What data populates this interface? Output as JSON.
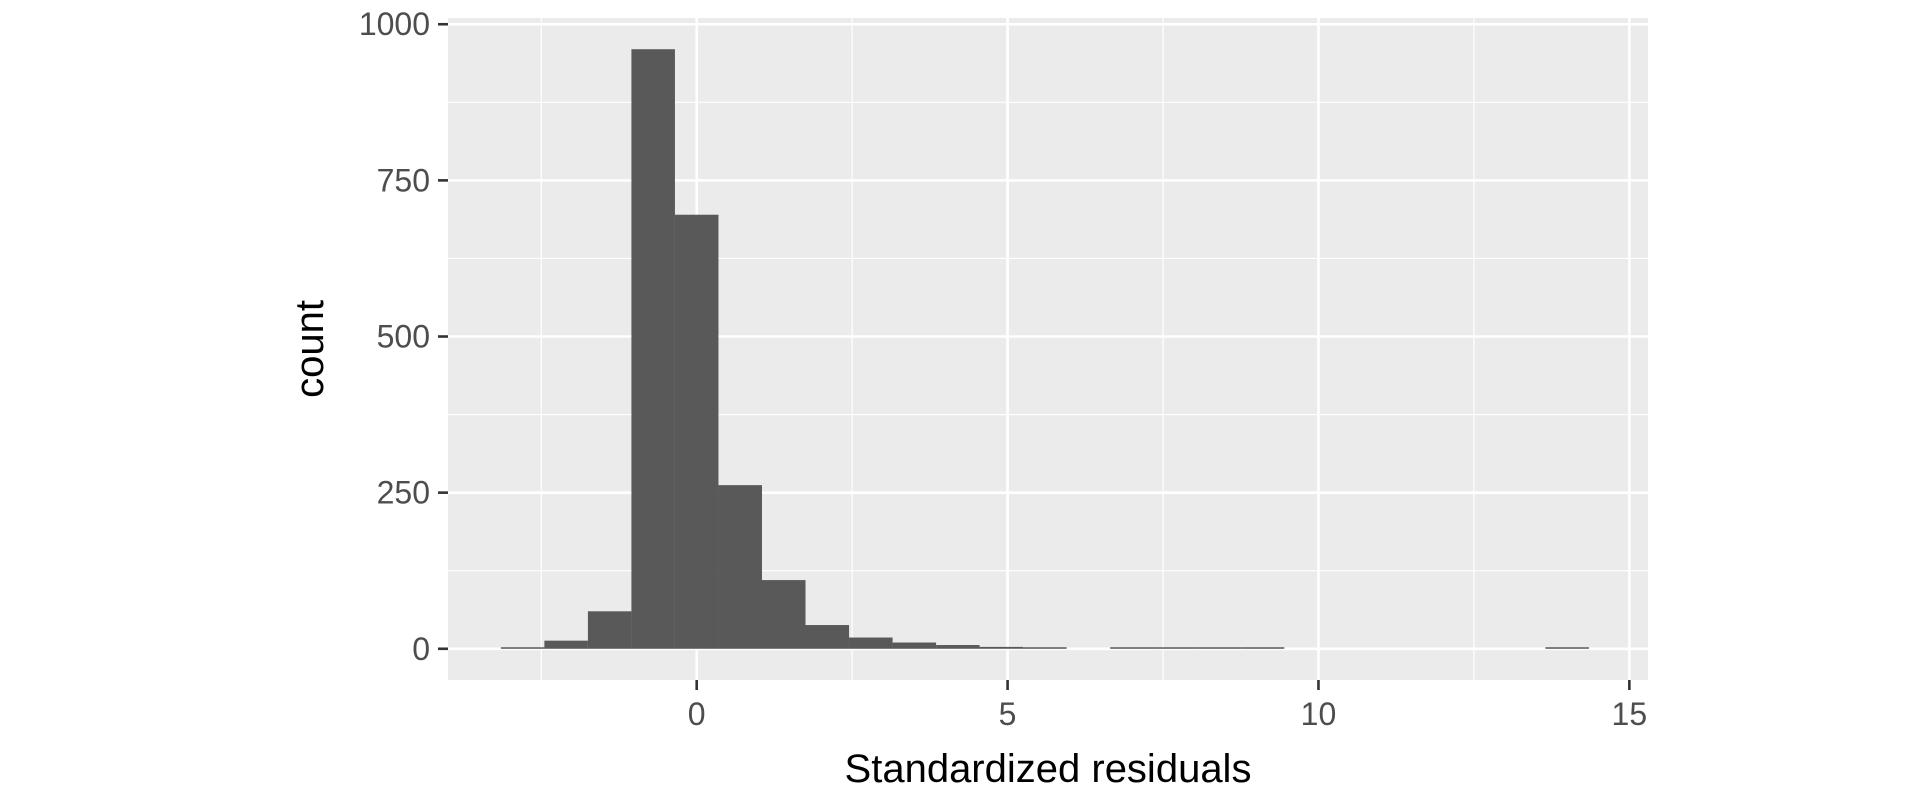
{
  "chart_data": {
    "type": "bar",
    "title": "",
    "xlabel": "Standardized residuals",
    "ylabel": "count",
    "xlim": [
      -4.0,
      15.3
    ],
    "ylim": [
      -50,
      1010
    ],
    "x_ticks": [
      0,
      5,
      10,
      15
    ],
    "y_ticks": [
      0,
      250,
      500,
      750,
      1000
    ],
    "bin_width": 0.7,
    "bins": [
      {
        "x0": -3.15,
        "x1": -2.45,
        "count": 2
      },
      {
        "x0": -2.45,
        "x1": -1.75,
        "count": 13
      },
      {
        "x0": -1.75,
        "x1": -1.05,
        "count": 60
      },
      {
        "x0": -1.05,
        "x1": -0.35,
        "count": 960
      },
      {
        "x0": -0.35,
        "x1": 0.35,
        "count": 695
      },
      {
        "x0": 0.35,
        "x1": 1.05,
        "count": 262
      },
      {
        "x0": 1.05,
        "x1": 1.75,
        "count": 110
      },
      {
        "x0": 1.75,
        "x1": 2.45,
        "count": 38
      },
      {
        "x0": 2.45,
        "x1": 3.15,
        "count": 18
      },
      {
        "x0": 3.15,
        "x1": 3.85,
        "count": 10
      },
      {
        "x0": 3.85,
        "x1": 4.55,
        "count": 6
      },
      {
        "x0": 4.55,
        "x1": 5.25,
        "count": 3
      },
      {
        "x0": 5.25,
        "x1": 5.95,
        "count": 1
      },
      {
        "x0": 5.95,
        "x1": 6.65,
        "count": 0
      },
      {
        "x0": 6.65,
        "x1": 7.35,
        "count": 2
      },
      {
        "x0": 7.35,
        "x1": 8.05,
        "count": 1
      },
      {
        "x0": 8.05,
        "x1": 8.75,
        "count": 2
      },
      {
        "x0": 8.75,
        "x1": 9.45,
        "count": 1
      },
      {
        "x0": 13.65,
        "x1": 14.35,
        "count": 1
      }
    ],
    "grid": true,
    "legend": "none",
    "colors": {
      "bar": "#595959",
      "panel": "#ebebeb",
      "grid": "#ffffff",
      "tick": "#333333"
    }
  }
}
